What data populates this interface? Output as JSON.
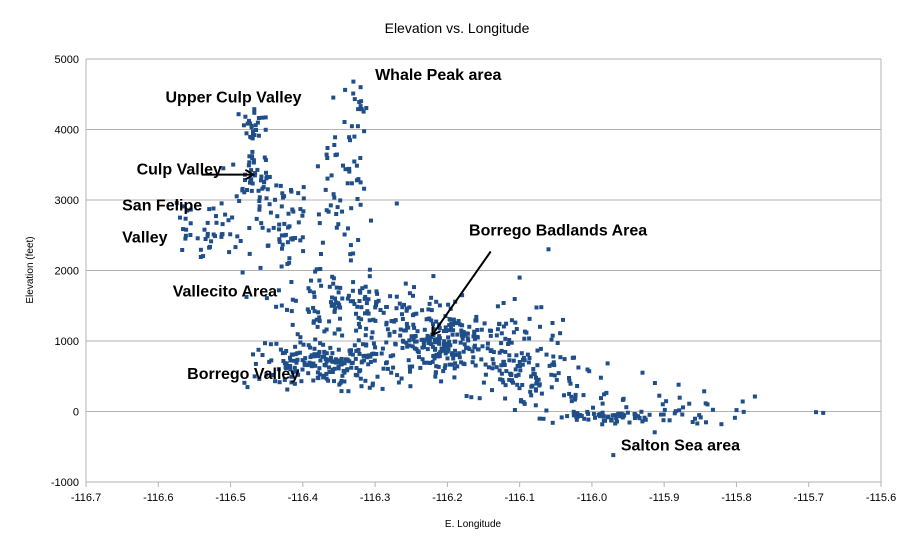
{
  "chart_data": {
    "type": "scatter",
    "title": "Elevation vs. Longitude",
    "xlabel": "E. Longitude",
    "ylabel": "Elevation (feet)",
    "xlim": [
      -116.7,
      -115.6
    ],
    "ylim": [
      -1000,
      5000
    ],
    "x_ticks": [
      -116.7,
      -116.6,
      -116.5,
      -116.4,
      -116.3,
      -116.2,
      -116.1,
      -116.0,
      -115.9,
      -115.8,
      -115.7,
      -115.6
    ],
    "x_tick_labels": [
      "-116.7",
      "-116.6",
      "-116.5",
      "-116.4",
      "-116.3",
      "-116.2",
      "-116.1",
      "-116.0",
      "-115.9",
      "-115.8",
      "-115.7",
      "-115.6"
    ],
    "y_ticks": [
      -1000,
      0,
      1000,
      2000,
      3000,
      4000,
      5000
    ],
    "y_tick_labels": [
      "-1000",
      "0",
      "1000",
      "2000",
      "3000",
      "4000",
      "5000"
    ],
    "grid": "horizontal",
    "marker_color": "#1f4e89",
    "annotations": [
      {
        "id": "whale-peak",
        "text": "Whale Peak area",
        "x": -116.3,
        "y": 4700
      },
      {
        "id": "upper-culp-valley",
        "text": "Upper Culp Valley",
        "x": -116.59,
        "y": 4380
      },
      {
        "id": "culp-valley",
        "text": "Culp Valley",
        "x": -116.63,
        "y": 3360
      },
      {
        "id": "san-felipe-1",
        "text": "San Felipe",
        "x": -116.65,
        "y": 2850
      },
      {
        "id": "san-felipe-2",
        "text": "Valley",
        "x": -116.65,
        "y": 2400
      },
      {
        "id": "borrego-badlands",
        "text": "Borrego Badlands Area",
        "x": -116.17,
        "y": 2500
      },
      {
        "id": "vallecito",
        "text": "Vallecito Area",
        "x": -116.58,
        "y": 1630
      },
      {
        "id": "borrego-valley",
        "text": "Borrego Valley",
        "x": -116.56,
        "y": 460
      },
      {
        "id": "salton-sea",
        "text": "Salton Sea area",
        "x": -115.96,
        "y": -550
      }
    ],
    "arrows": [
      {
        "id": "culp-valley-arrow",
        "from": [
          -116.54,
          3360
        ],
        "to": [
          -116.47,
          3360
        ]
      },
      {
        "id": "badlands-arrow",
        "from": [
          -116.14,
          2270
        ],
        "to": [
          -116.22,
          1100
        ]
      }
    ],
    "clusters": [
      {
        "name": "San Felipe Valley",
        "cx": -116.53,
        "cy": 2550,
        "sx": 0.03,
        "sy": 250,
        "n": 45
      },
      {
        "name": "Upper Culp Valley",
        "cx": -116.47,
        "cy": 4050,
        "sx": 0.012,
        "sy": 130,
        "n": 25
      },
      {
        "name": "Culp Valley",
        "cx": -116.465,
        "cy": 3350,
        "sx": 0.012,
        "sy": 170,
        "n": 40
      },
      {
        "name": "Culp Valley slope",
        "cx": -116.43,
        "cy": 2700,
        "sx": 0.025,
        "sy": 260,
        "n": 60
      },
      {
        "name": "Whale Peak ridge",
        "cx": -116.345,
        "cy": 3300,
        "sx": 0.02,
        "sy": 500,
        "n": 45
      },
      {
        "name": "Whale Peak summit",
        "cx": -116.325,
        "cy": 4300,
        "sx": 0.008,
        "sy": 250,
        "n": 14
      },
      {
        "name": "Vallecito Area",
        "cx": -116.34,
        "cy": 1500,
        "sx": 0.055,
        "sy": 280,
        "n": 140
      },
      {
        "name": "Borrego Valley",
        "cx": -116.37,
        "cy": 700,
        "sx": 0.05,
        "sy": 170,
        "n": 200
      },
      {
        "name": "Borrego Badlands Area",
        "cx": -116.2,
        "cy": 950,
        "sx": 0.05,
        "sy": 260,
        "n": 270
      },
      {
        "name": "Badlands east",
        "cx": -116.1,
        "cy": 600,
        "sx": 0.03,
        "sy": 320,
        "n": 80
      },
      {
        "name": "Badlands east scatter",
        "cx": -116.03,
        "cy": 400,
        "sx": 0.035,
        "sy": 350,
        "n": 40
      },
      {
        "name": "Salton Sea area",
        "cx": -115.97,
        "cy": -80,
        "sx": 0.035,
        "sy": 50,
        "n": 60
      },
      {
        "name": "Salton Sea east",
        "cx": -115.86,
        "cy": 60,
        "sx": 0.04,
        "sy": 140,
        "n": 28
      }
    ],
    "points": [
      {
        "x": -116.32,
        "y": 3250
      },
      {
        "x": -116.06,
        "y": 2300
      },
      {
        "x": -115.68,
        "y": -20
      },
      {
        "x": -115.69,
        "y": -10
      },
      {
        "x": -115.79,
        "y": -5
      },
      {
        "x": -115.8,
        "y": 20
      },
      {
        "x": -116.56,
        "y": 2850
      },
      {
        "x": -116.57,
        "y": 2750
      },
      {
        "x": -116.51,
        "y": 3450
      },
      {
        "x": -116.33,
        "y": 4680
      },
      {
        "x": -116.32,
        "y": 4600
      },
      {
        "x": -116.27,
        "y": 2950
      },
      {
        "x": -116.1,
        "y": 1900
      },
      {
        "x": -116.07,
        "y": 1480
      },
      {
        "x": -116.04,
        "y": 1300
      },
      {
        "x": -115.93,
        "y": 550
      },
      {
        "x": -115.88,
        "y": 380
      },
      {
        "x": -115.84,
        "y": 100
      }
    ]
  }
}
